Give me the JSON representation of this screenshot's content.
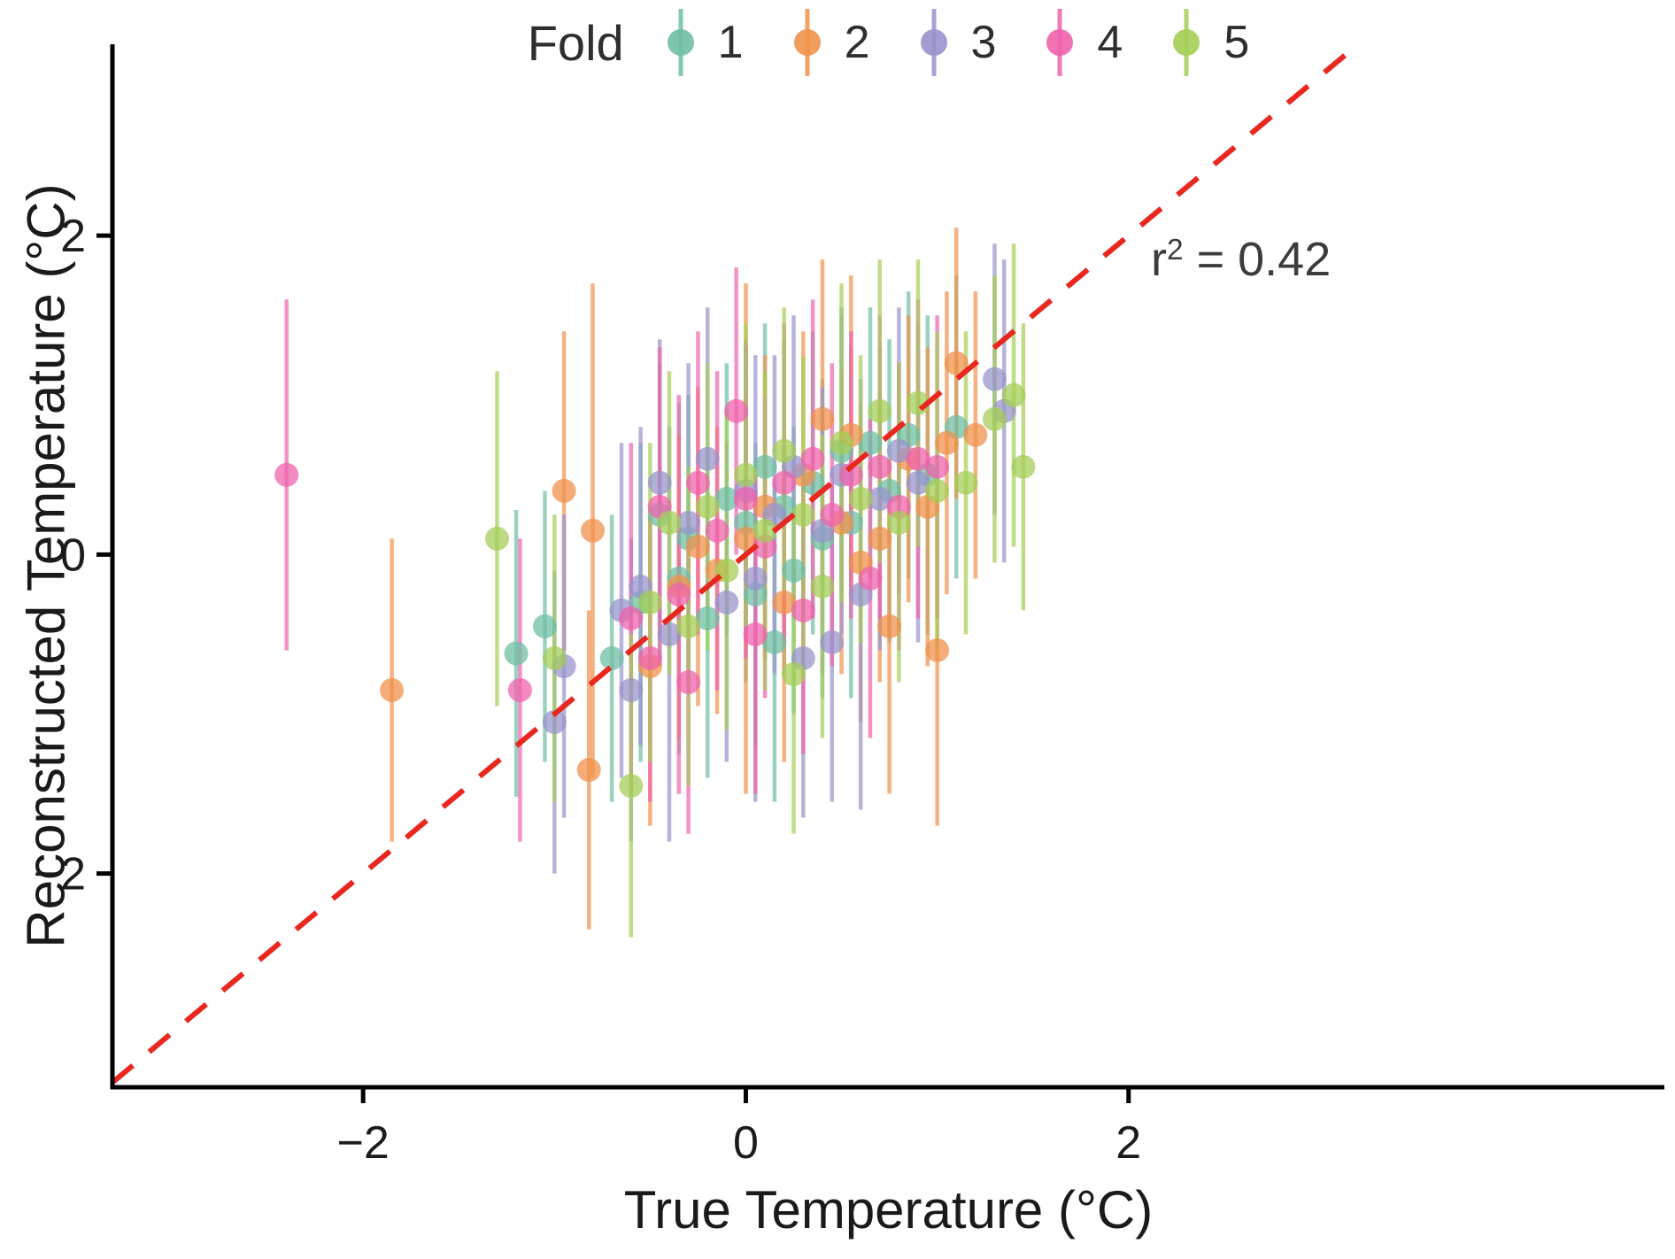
{
  "chart_data": {
    "type": "scatter",
    "title": "",
    "xlabel": "True Temperature (°C)",
    "ylabel": "Reconstructed Temperature (°C)",
    "legend_title": "Fold",
    "legend_position": "top-center",
    "annotation": {
      "base": "r",
      "sup": "2",
      "rest": " = 0.42"
    },
    "xlim": [
      -3.31,
      4.8
    ],
    "ylim": [
      -3.34,
      3.2
    ],
    "grid": false,
    "x_ticks": {
      "values": [
        -2,
        0,
        2
      ],
      "labels": [
        "−2",
        "0",
        "2"
      ]
    },
    "y_ticks": {
      "values": [
        -2,
        0,
        2
      ],
      "labels": [
        "−2",
        "0",
        "2"
      ]
    },
    "identity_line": {
      "slope": 1,
      "intercept": 0,
      "color": "#e8271f",
      "style": "dashed"
    },
    "axis_color": "#000000",
    "point_note": "points are [x, y, error_halfwidth]",
    "series": [
      {
        "name": "1",
        "color": "#6FBFA4",
        "points": [
          [
            -1.2,
            -0.62,
            0.9
          ],
          [
            -1.05,
            -0.45,
            0.85
          ],
          [
            -0.7,
            -0.65,
            0.9
          ],
          [
            -0.55,
            -0.3,
            1.0
          ],
          [
            -0.45,
            0.25,
            0.95
          ],
          [
            -0.35,
            -0.15,
            1.1
          ],
          [
            -0.3,
            0.1,
            0.9
          ],
          [
            -0.2,
            -0.4,
            1.0
          ],
          [
            -0.1,
            0.35,
            0.85
          ],
          [
            0.0,
            0.2,
            1.0
          ],
          [
            0.05,
            -0.25,
            0.95
          ],
          [
            0.1,
            0.55,
            0.9
          ],
          [
            0.15,
            -0.55,
            1.0
          ],
          [
            0.2,
            0.3,
            1.05
          ],
          [
            0.25,
            -0.1,
            0.9
          ],
          [
            0.35,
            0.45,
            0.95
          ],
          [
            0.4,
            0.1,
            1.0
          ],
          [
            0.5,
            0.65,
            0.9
          ],
          [
            0.55,
            0.2,
            1.1
          ],
          [
            0.65,
            0.7,
            0.85
          ],
          [
            0.75,
            0.4,
            0.95
          ],
          [
            0.85,
            0.75,
            0.9
          ],
          [
            0.95,
            0.5,
            1.0
          ],
          [
            1.1,
            0.8,
            0.95
          ]
        ]
      },
      {
        "name": "2",
        "color": "#F0924B",
        "points": [
          [
            -1.85,
            -0.85,
            0.95
          ],
          [
            -0.95,
            0.4,
            1.0
          ],
          [
            -0.8,
            0.15,
            1.55
          ],
          [
            -0.82,
            -1.35,
            1.0
          ],
          [
            -0.5,
            -0.7,
            1.0
          ],
          [
            -0.35,
            -0.2,
            0.95
          ],
          [
            -0.25,
            0.05,
            1.0
          ],
          [
            -0.15,
            -0.1,
            0.9
          ],
          [
            0.0,
            0.1,
            1.6
          ],
          [
            0.1,
            0.3,
            0.95
          ],
          [
            0.2,
            -0.3,
            1.0
          ],
          [
            0.3,
            0.5,
            0.9
          ],
          [
            0.4,
            0.85,
            1.0
          ],
          [
            0.5,
            0.2,
            0.95
          ],
          [
            0.55,
            0.75,
            1.0
          ],
          [
            0.6,
            -0.05,
            1.0
          ],
          [
            0.7,
            0.1,
            0.9
          ],
          [
            0.75,
            -0.45,
            1.05
          ],
          [
            0.85,
            0.6,
            0.9
          ],
          [
            0.95,
            0.3,
            1.0
          ],
          [
            1.0,
            -0.6,
            1.1
          ],
          [
            1.05,
            0.7,
            0.95
          ],
          [
            1.1,
            1.2,
            0.85
          ],
          [
            1.2,
            0.75,
            0.9
          ]
        ]
      },
      {
        "name": "3",
        "color": "#9894CC",
        "points": [
          [
            -1.0,
            -1.05,
            0.95
          ],
          [
            -0.95,
            -0.7,
            0.95
          ],
          [
            -0.65,
            -0.35,
            1.05
          ],
          [
            -0.6,
            -0.85,
            0.95
          ],
          [
            -0.55,
            -0.2,
            1.0
          ],
          [
            -0.45,
            0.45,
            0.9
          ],
          [
            -0.4,
            -0.5,
            1.3
          ],
          [
            -0.3,
            0.2,
            1.0
          ],
          [
            -0.2,
            0.6,
            0.95
          ],
          [
            -0.1,
            -0.3,
            1.0
          ],
          [
            0.0,
            0.4,
            0.9
          ],
          [
            0.05,
            -0.15,
            1.4
          ],
          [
            0.15,
            0.25,
            1.0
          ],
          [
            0.25,
            0.55,
            0.95
          ],
          [
            0.3,
            -0.65,
            1.0
          ],
          [
            0.4,
            0.15,
            0.9
          ],
          [
            0.45,
            -0.55,
            1.0
          ],
          [
            0.5,
            0.5,
            1.0
          ],
          [
            0.6,
            -0.25,
            1.35
          ],
          [
            0.7,
            0.35,
            0.95
          ],
          [
            0.8,
            0.65,
            0.9
          ],
          [
            0.9,
            0.45,
            1.0
          ],
          [
            1.3,
            1.1,
            0.85
          ],
          [
            1.35,
            0.9,
            0.95
          ]
        ]
      },
      {
        "name": "4",
        "color": "#EF63AC",
        "points": [
          [
            -2.4,
            0.5,
            1.1
          ],
          [
            -1.18,
            -0.85,
            0.95
          ],
          [
            -0.6,
            -0.4,
            1.1
          ],
          [
            -0.5,
            -0.65,
            0.9
          ],
          [
            -0.45,
            0.3,
            1.0
          ],
          [
            -0.35,
            -0.25,
            1.25
          ],
          [
            -0.3,
            -0.8,
            0.95
          ],
          [
            -0.25,
            0.45,
            0.95
          ],
          [
            -0.15,
            0.15,
            1.0
          ],
          [
            -0.05,
            0.9,
            0.9
          ],
          [
            0.0,
            0.35,
            1.0
          ],
          [
            0.05,
            -0.5,
            1.0
          ],
          [
            0.1,
            0.05,
            0.95
          ],
          [
            0.2,
            0.45,
            1.0
          ],
          [
            0.3,
            -0.35,
            0.9
          ],
          [
            0.35,
            0.6,
            1.0
          ],
          [
            0.45,
            0.25,
            0.95
          ],
          [
            0.55,
            0.5,
            0.9
          ],
          [
            0.65,
            -0.15,
            1.0
          ],
          [
            0.7,
            0.55,
            0.95
          ],
          [
            0.8,
            0.3,
            0.9
          ],
          [
            0.9,
            0.6,
            1.0
          ],
          [
            1.0,
            0.55,
            0.95
          ]
        ]
      },
      {
        "name": "5",
        "color": "#A4CE57",
        "points": [
          [
            -1.3,
            0.1,
            1.05
          ],
          [
            -1.0,
            -0.65,
            0.9
          ],
          [
            -0.6,
            -1.45,
            0.95
          ],
          [
            -0.5,
            -0.3,
            1.0
          ],
          [
            -0.4,
            0.2,
            0.95
          ],
          [
            -0.3,
            -0.45,
            1.0
          ],
          [
            -0.2,
            0.3,
            0.9
          ],
          [
            -0.1,
            -0.1,
            1.0
          ],
          [
            0.0,
            0.5,
            0.95
          ],
          [
            0.1,
            0.15,
            1.0
          ],
          [
            0.2,
            0.65,
            0.9
          ],
          [
            0.25,
            -0.75,
            1.0
          ],
          [
            0.3,
            0.25,
            1.0
          ],
          [
            0.4,
            -0.2,
            0.95
          ],
          [
            0.5,
            0.7,
            1.0
          ],
          [
            0.6,
            0.35,
            0.9
          ],
          [
            0.7,
            0.9,
            0.95
          ],
          [
            0.8,
            0.2,
            1.0
          ],
          [
            0.9,
            0.95,
            0.9
          ],
          [
            1.0,
            0.4,
            1.0
          ],
          [
            1.15,
            0.45,
            0.95
          ],
          [
            1.3,
            0.85,
            0.9
          ],
          [
            1.4,
            1.0,
            0.95
          ],
          [
            1.45,
            0.55,
            0.9
          ]
        ]
      }
    ]
  }
}
